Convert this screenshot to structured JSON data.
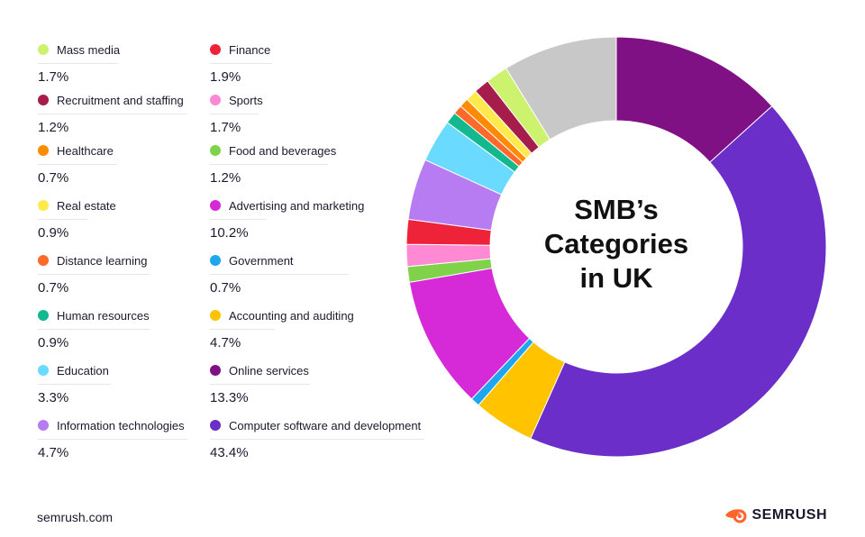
{
  "chart_data": {
    "type": "pie",
    "title": "SMB’s Categories in UK",
    "title_lines": [
      "SMB’s",
      "Categories",
      "in UK"
    ],
    "slices": [
      {
        "label": "Mass media",
        "value": 1.7,
        "display": "1.7%",
        "color": "#ccf26e"
      },
      {
        "label": "Finance",
        "value": 1.9,
        "display": "1.9%",
        "color": "#ee2239"
      },
      {
        "label": "Recruitment and staffing",
        "value": 1.2,
        "display": "1.2%",
        "color": "#a61c4a"
      },
      {
        "label": "Sports",
        "value": 1.7,
        "display": "1.7%",
        "color": "#ff8ad3"
      },
      {
        "label": "Healthcare",
        "value": 0.7,
        "display": "0.7%",
        "color": "#ff8c00"
      },
      {
        "label": "Food and beverages",
        "value": 1.2,
        "display": "1.2%",
        "color": "#7fd24a"
      },
      {
        "label": "Real estate",
        "value": 0.9,
        "display": "0.9%",
        "color": "#ffe94d"
      },
      {
        "label": "Advertising and marketing",
        "value": 10.2,
        "display": "10.2%",
        "color": "#d62ad8"
      },
      {
        "label": "Distance learning",
        "value": 0.7,
        "display": "0.7%",
        "color": "#ff6a2b"
      },
      {
        "label": "Government",
        "value": 0.7,
        "display": "0.7%",
        "color": "#1fa6f0"
      },
      {
        "label": "Human resources",
        "value": 0.9,
        "display": "0.9%",
        "color": "#14b88f"
      },
      {
        "label": "Accounting and auditing",
        "value": 4.7,
        "display": "4.7%",
        "color": "#ffc300"
      },
      {
        "label": "Education",
        "value": 3.3,
        "display": "3.3%",
        "color": "#6bdaff"
      },
      {
        "label": "Online services",
        "value": 13.3,
        "display": "13.3%",
        "color": "#7f1185"
      },
      {
        "label": "Information technologies",
        "value": 4.7,
        "display": "4.7%",
        "color": "#b77cf2"
      },
      {
        "label": "Computer software and development",
        "value": 43.4,
        "display": "43.4%",
        "color": "#6b2ec9"
      }
    ],
    "unlabeled_remainder_color": "#c8c8c8",
    "ring_order": [
      "Online services",
      "Computer software and development",
      "Accounting and auditing",
      "Government",
      "Advertising and marketing",
      "Food and beverages",
      "Sports",
      "Finance",
      "Information technologies",
      "Education",
      "Human resources",
      "Distance learning",
      "Healthcare",
      "Real estate",
      "Recruitment and staffing",
      "Mass media"
    ]
  },
  "footer": {
    "site": "semrush.com",
    "brand": "SEMRUSH",
    "brand_color": "#ff642d"
  }
}
